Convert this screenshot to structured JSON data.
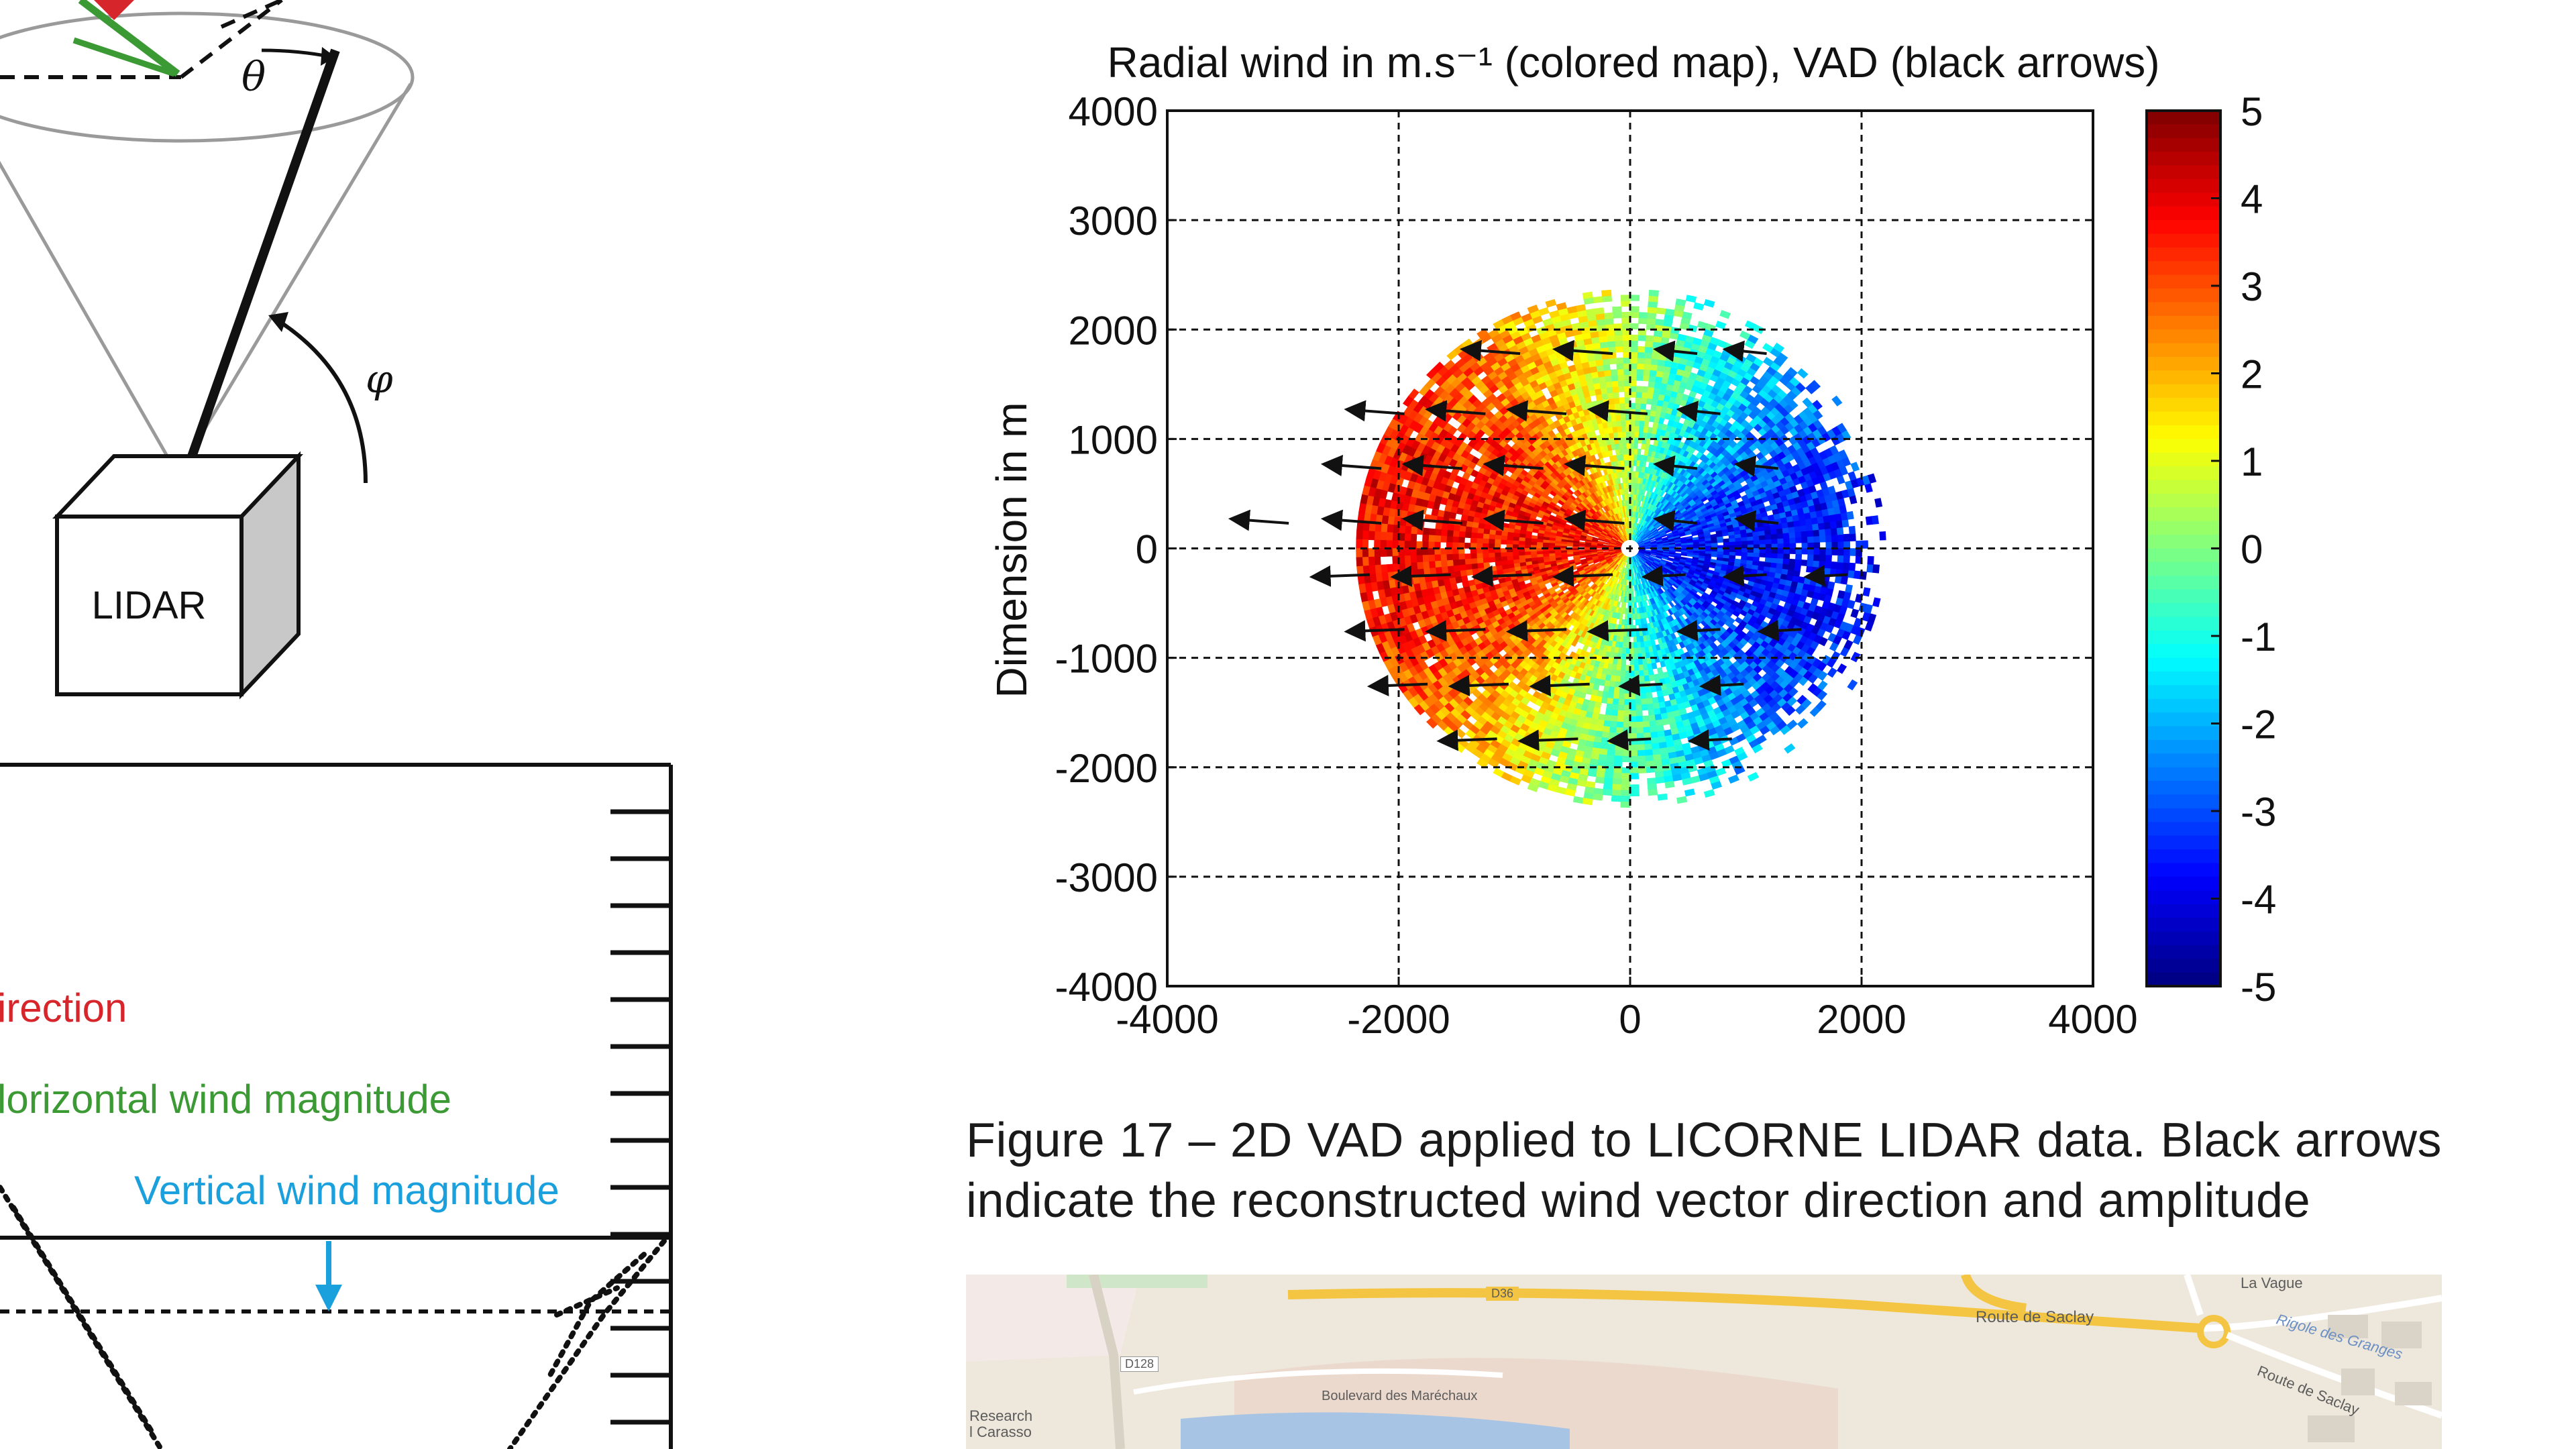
{
  "left_diagram": {
    "labels": {
      "theta": "θ",
      "phi": "φ",
      "lidar": "LIDAR"
    },
    "legend": {
      "direction": "irection",
      "horizontal": "lorizontal wind magnitude",
      "vertical": "Vertical wind magnitude"
    },
    "colors": {
      "direction": "#d7262b",
      "horizontal": "#3c9a35",
      "vertical": "#1aa0dc"
    }
  },
  "chart_data": {
    "type": "heatmap",
    "title": "Radial wind in m.s⁻¹ (colored map), VAD (black arrows)",
    "xlabel": "",
    "ylabel": "Dimension in m",
    "xlim": [
      -4000,
      4000
    ],
    "ylim": [
      -4000,
      4000
    ],
    "x_ticks": [
      "-4000",
      "-2000",
      "0",
      "2000",
      "4000"
    ],
    "y_ticks": [
      "4000",
      "3000",
      "2000",
      "1000",
      "0",
      "-1000",
      "-2000",
      "-3000",
      "-4000"
    ],
    "grid": true,
    "colorbar": {
      "range": [
        -5,
        5
      ],
      "ticks": [
        "5",
        "4",
        "3",
        "2",
        "1",
        "0",
        "-1",
        "-2",
        "-3",
        "-4",
        "-5"
      ],
      "colormap": "jet"
    },
    "field": {
      "description_scale_max_radius_m": 2300,
      "west_max_ms": 4,
      "east_min_ms": -4
    },
    "arrows": [
      {
        "y": 1800,
        "x": [
          -1200,
          -400,
          400,
          1000
        ]
      },
      {
        "y": 1250,
        "x": [
          -2200,
          -1500,
          -800,
          -100,
          600
        ]
      },
      {
        "y": 750,
        "x": [
          -2400,
          -1700,
          -1000,
          -300,
          400,
          1100
        ]
      },
      {
        "y": 250,
        "x": [
          -3200,
          -2400,
          -1700,
          -1000,
          -300,
          400,
          1100
        ]
      },
      {
        "y": -250,
        "x": [
          -2500,
          -1800,
          -1100,
          -400,
          300,
          1000,
          1700
        ]
      },
      {
        "y": -750,
        "x": [
          -2200,
          -1500,
          -800,
          -100,
          600,
          1300
        ]
      },
      {
        "y": -1250,
        "x": [
          -2000,
          -1300,
          -600,
          100,
          800
        ]
      },
      {
        "y": -1750,
        "x": [
          -1400,
          -700,
          0,
          700
        ]
      }
    ]
  },
  "caption": {
    "text": "Figure 17 – 2D VAD applied to LICORNE LIDAR data. Black arrows indicate the reconstructed wind vector direction and amplitude"
  },
  "map": {
    "labels": {
      "d36": "D36",
      "route_saclay": "Route de Saclay",
      "la_vague": "La Vague",
      "rigole": "Rigole des Granges",
      "route_saclay2": "Route de Saclay",
      "d128": "D128",
      "boulevard": "Boulevard des Maréchaux",
      "research": "Research",
      "carasso": "l Carasso"
    }
  }
}
